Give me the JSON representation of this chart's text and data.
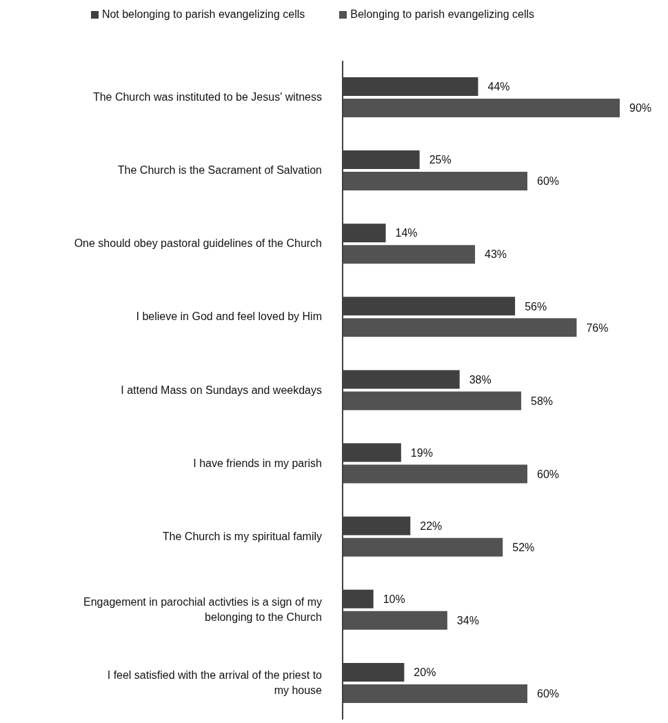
{
  "chart_data": {
    "type": "bar",
    "orientation": "horizontal",
    "legend": "top",
    "grid": false,
    "categories": [
      "The Church was instituted to be Jesus' witness",
      "The Church is the Sacrament of Salvation",
      "One should obey pastoral guidelines of the Church",
      "I believe in God and feel loved by Him",
      "I attend Mass on Sundays and weekdays",
      "I have friends in my parish",
      "The Church is my spiritual family",
      "Engagement in parochial activties is a sign of my belonging to the Church",
      "I feel satisfied with the arrival of the priest to my house"
    ],
    "series": [
      {
        "name": "Not belonging to parish evangelizing cells",
        "color": "#404040",
        "values": [
          44,
          25,
          14,
          56,
          38,
          19,
          22,
          10,
          20
        ],
        "value_labels": [
          "44%",
          "25%",
          "14%",
          "56%",
          "38%",
          "19%",
          "22%",
          "10%",
          "20%"
        ]
      },
      {
        "name": "Belonging to parish evangelizing cells",
        "color": "#525252",
        "values": [
          90,
          60,
          43,
          76,
          58,
          60,
          52,
          34,
          60
        ],
        "value_labels": [
          "90%",
          "60%",
          "43%",
          "76%",
          "58%",
          "60%",
          "52%",
          "34%",
          "60%"
        ]
      }
    ]
  }
}
